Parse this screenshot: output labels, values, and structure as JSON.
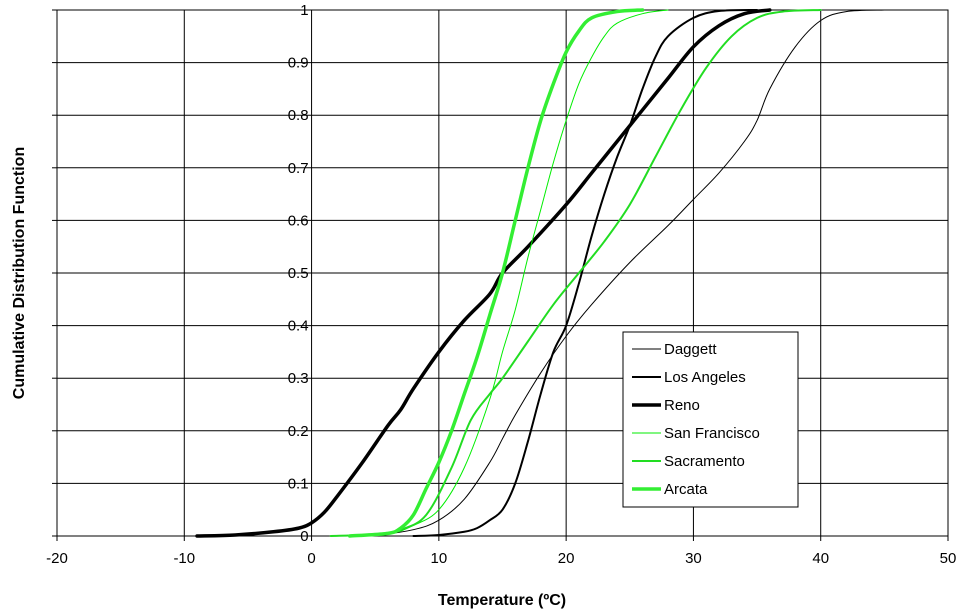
{
  "chart_data": {
    "type": "line",
    "title": "",
    "xlabel": "Temperature (ºC)",
    "ylabel": "Cumulative Distribution Function",
    "xlim": [
      -20,
      50
    ],
    "ylim": [
      0,
      1
    ],
    "x_ticks": [
      "-20",
      "-10",
      "0",
      "10",
      "20",
      "30",
      "40",
      "50"
    ],
    "y_ticks": [
      "0",
      "0.1",
      "0.2",
      "0.3",
      "0.4",
      "0.5",
      "0.6",
      "0.7",
      "0.8",
      "0.9",
      "1"
    ],
    "grid": {
      "horizontal": true,
      "vertical": true
    },
    "legend_position": "bottom-right inside plot",
    "series": [
      {
        "name": "Daggett",
        "color": "#000000",
        "weight": "thin",
        "points": [
          [
            1.5,
            0
          ],
          [
            5,
            0.002
          ],
          [
            8,
            0.012
          ],
          [
            10,
            0.03
          ],
          [
            12,
            0.07
          ],
          [
            14,
            0.14
          ],
          [
            15,
            0.185
          ],
          [
            16,
            0.23
          ],
          [
            18,
            0.31
          ],
          [
            20,
            0.38
          ],
          [
            22,
            0.44
          ],
          [
            25,
            0.52
          ],
          [
            28,
            0.59
          ],
          [
            30,
            0.64
          ],
          [
            32,
            0.69
          ],
          [
            34,
            0.75
          ],
          [
            35,
            0.79
          ],
          [
            36,
            0.85
          ],
          [
            38,
            0.93
          ],
          [
            40,
            0.98
          ],
          [
            42,
            0.997
          ],
          [
            45,
            1
          ]
        ]
      },
      {
        "name": "Los Angeles",
        "color": "#000000",
        "weight": "medium",
        "points": [
          [
            8,
            0
          ],
          [
            10,
            0.002
          ],
          [
            12,
            0.008
          ],
          [
            13,
            0.015
          ],
          [
            14,
            0.03
          ],
          [
            15,
            0.05
          ],
          [
            16,
            0.1
          ],
          [
            17,
            0.18
          ],
          [
            18,
            0.27
          ],
          [
            19,
            0.35
          ],
          [
            20,
            0.4
          ],
          [
            21,
            0.48
          ],
          [
            22,
            0.57
          ],
          [
            23,
            0.65
          ],
          [
            24,
            0.72
          ],
          [
            25,
            0.78
          ],
          [
            26,
            0.85
          ],
          [
            27,
            0.91
          ],
          [
            28,
            0.95
          ],
          [
            30,
            0.985
          ],
          [
            32,
            0.998
          ],
          [
            35,
            1
          ]
        ]
      },
      {
        "name": "Reno",
        "color": "#000000",
        "weight": "thick",
        "points": [
          [
            -9,
            0
          ],
          [
            -6,
            0.002
          ],
          [
            -3,
            0.008
          ],
          [
            -1,
            0.015
          ],
          [
            0,
            0.025
          ],
          [
            1,
            0.045
          ],
          [
            2,
            0.075
          ],
          [
            4,
            0.14
          ],
          [
            6,
            0.21
          ],
          [
            7,
            0.24
          ],
          [
            8,
            0.28
          ],
          [
            10,
            0.35
          ],
          [
            12,
            0.41
          ],
          [
            14,
            0.46
          ],
          [
            15,
            0.5
          ],
          [
            17,
            0.55
          ],
          [
            20,
            0.63
          ],
          [
            22,
            0.69
          ],
          [
            24,
            0.75
          ],
          [
            26,
            0.81
          ],
          [
            28,
            0.87
          ],
          [
            30,
            0.93
          ],
          [
            32,
            0.97
          ],
          [
            34,
            0.993
          ],
          [
            36,
            1
          ]
        ]
      },
      {
        "name": "San Francisco",
        "color": "#00ee00",
        "weight": "thin",
        "points": [
          [
            3,
            0
          ],
          [
            6,
            0.003
          ],
          [
            8,
            0.02
          ],
          [
            10,
            0.05
          ],
          [
            12,
            0.13
          ],
          [
            14,
            0.26
          ],
          [
            15,
            0.35
          ],
          [
            16,
            0.43
          ],
          [
            17,
            0.53
          ],
          [
            18,
            0.62
          ],
          [
            19,
            0.71
          ],
          [
            20,
            0.79
          ],
          [
            21,
            0.86
          ],
          [
            22,
            0.91
          ],
          [
            23,
            0.95
          ],
          [
            24,
            0.975
          ],
          [
            26,
            0.993
          ],
          [
            28,
            1
          ]
        ]
      },
      {
        "name": "Sacramento",
        "color": "#22dd22",
        "weight": "medium",
        "points": [
          [
            1.5,
            0
          ],
          [
            5,
            0.003
          ],
          [
            7,
            0.012
          ],
          [
            9,
            0.04
          ],
          [
            11,
            0.13
          ],
          [
            12.5,
            0.22
          ],
          [
            14,
            0.27
          ],
          [
            15,
            0.3
          ],
          [
            17,
            0.37
          ],
          [
            19,
            0.44
          ],
          [
            21,
            0.5
          ],
          [
            23,
            0.56
          ],
          [
            25,
            0.63
          ],
          [
            27,
            0.72
          ],
          [
            29,
            0.81
          ],
          [
            31,
            0.89
          ],
          [
            33,
            0.95
          ],
          [
            35,
            0.985
          ],
          [
            37,
            0.997
          ],
          [
            40,
            1
          ]
        ]
      },
      {
        "name": "Arcata",
        "color": "#33ee33",
        "weight": "thick",
        "points": [
          [
            3,
            0
          ],
          [
            6,
            0.005
          ],
          [
            7,
            0.015
          ],
          [
            8,
            0.04
          ],
          [
            9,
            0.09
          ],
          [
            10,
            0.14
          ],
          [
            11,
            0.2
          ],
          [
            12,
            0.27
          ],
          [
            13,
            0.34
          ],
          [
            14,
            0.42
          ],
          [
            15,
            0.5
          ],
          [
            16,
            0.6
          ],
          [
            17,
            0.7
          ],
          [
            18,
            0.79
          ],
          [
            19,
            0.86
          ],
          [
            20,
            0.92
          ],
          [
            21,
            0.96
          ],
          [
            22,
            0.985
          ],
          [
            24,
            0.997
          ],
          [
            26,
            1
          ]
        ]
      }
    ]
  }
}
